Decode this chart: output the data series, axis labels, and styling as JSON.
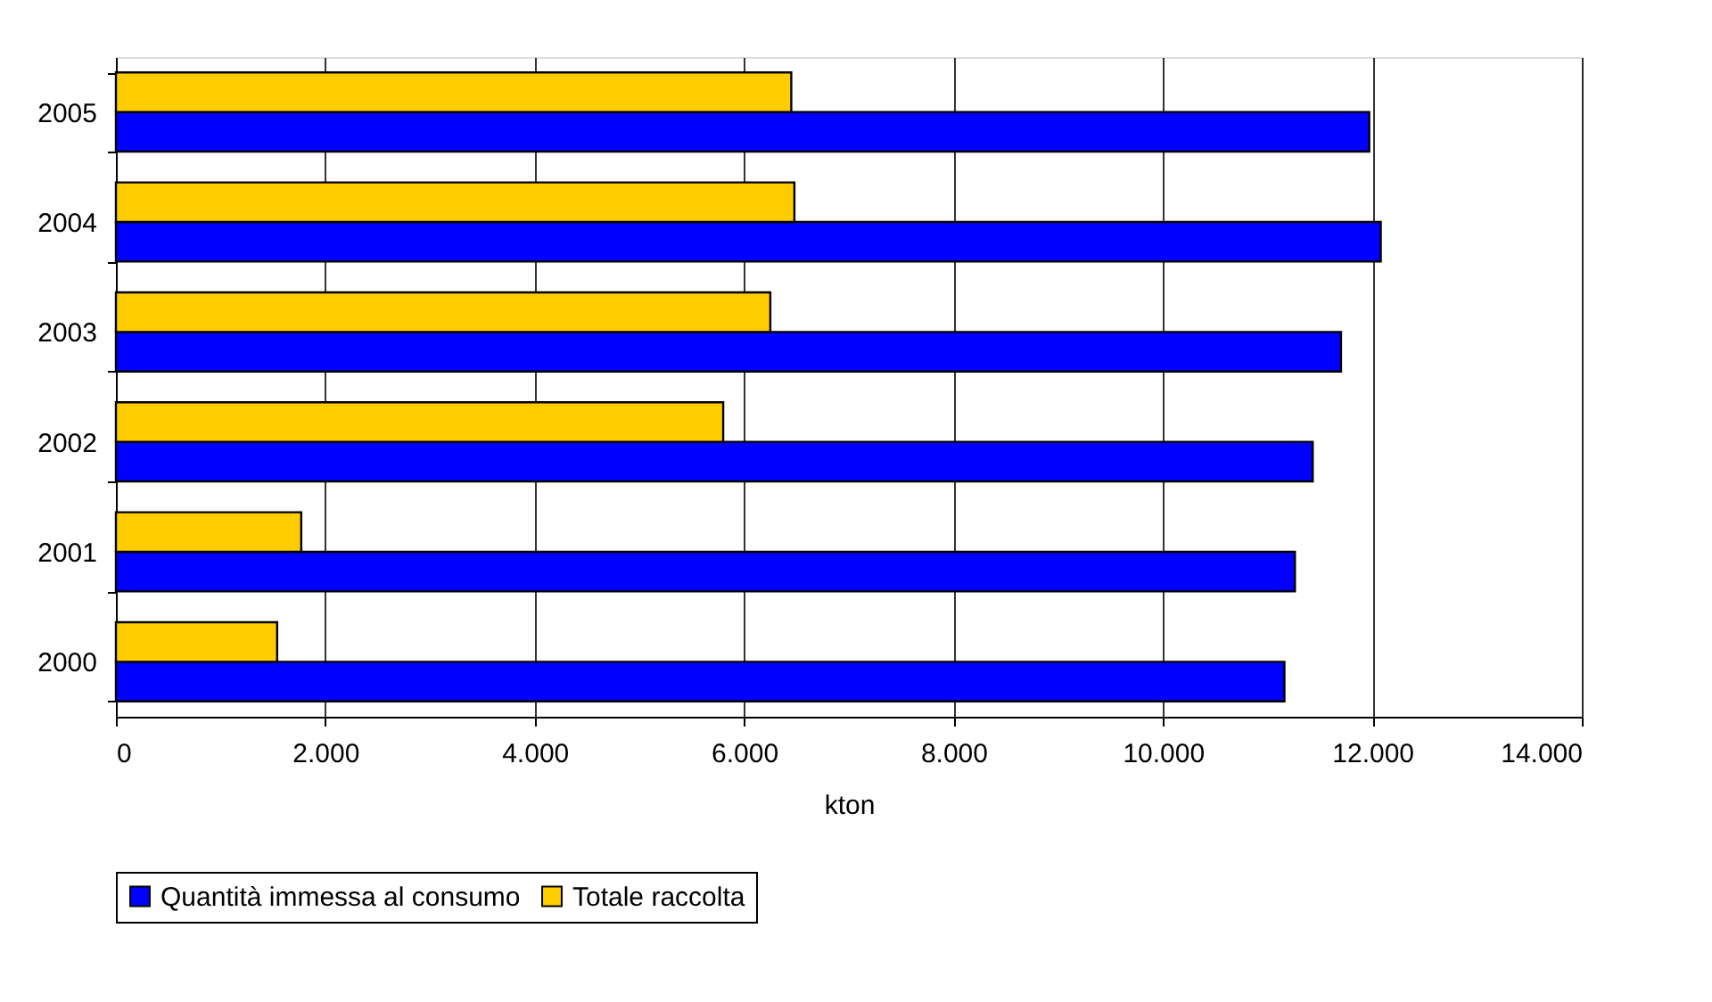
{
  "chart_data": {
    "type": "bar",
    "orientation": "horizontal",
    "categories": [
      "2005",
      "2004",
      "2003",
      "2002",
      "2001",
      "2000"
    ],
    "series": [
      {
        "name": "Quantità immessa al consumo",
        "color": "#0000ff",
        "values": [
          11970,
          12080,
          11700,
          11430,
          11260,
          11160
        ]
      },
      {
        "name": "Totale raccolta",
        "color": "#ffcc00",
        "values": [
          6450,
          6480,
          6250,
          5800,
          1770,
          1540
        ]
      }
    ],
    "xlabel": "kton",
    "xlim": [
      0,
      14000
    ],
    "xticks": [
      0,
      {
        "value": 2000,
        "label": "2.000"
      },
      {
        "value": 4000,
        "label": "4.000"
      },
      {
        "value": 6000,
        "label": "6.000"
      },
      {
        "value": 8000,
        "label": "8.000"
      },
      {
        "value": 10000,
        "label": "10.000"
      },
      {
        "value": 12000,
        "label": "12.000"
      },
      {
        "value": 14000,
        "label": "14.000"
      }
    ],
    "grid": "x",
    "legend": "bottom"
  }
}
